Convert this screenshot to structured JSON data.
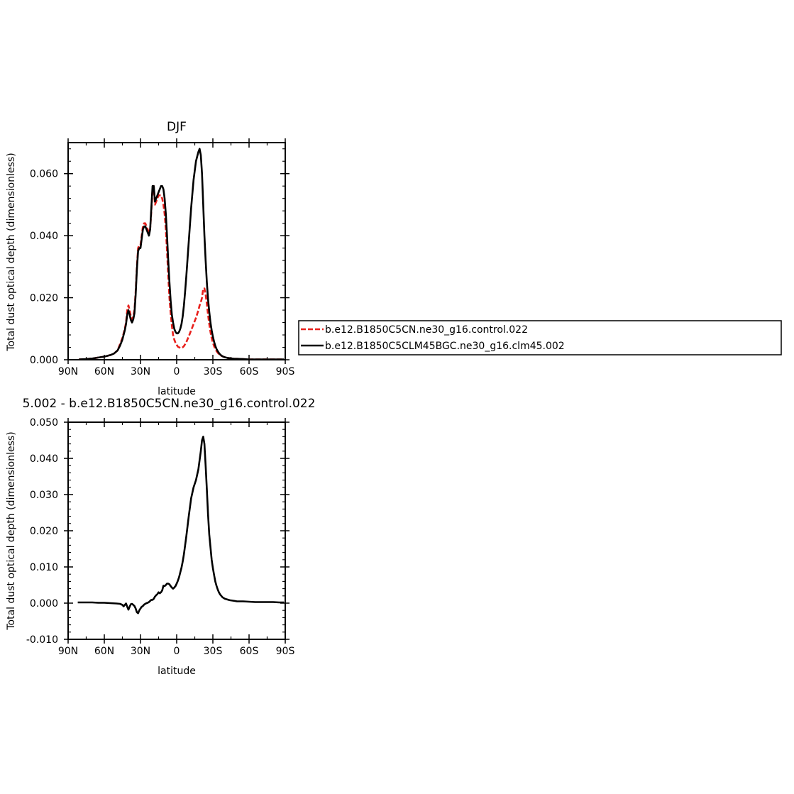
{
  "chart_data": [
    {
      "type": "line",
      "title": "DJF",
      "xlabel": "latitude",
      "ylabel": "Total dust optical depth (dimensionless)",
      "xlim": [
        90,
        -90
      ],
      "ylim": [
        0,
        0.07
      ],
      "x_ticks": [
        90,
        60,
        30,
        0,
        -30,
        -60,
        -90
      ],
      "x_tick_labels": [
        "90N",
        "60N",
        "30N",
        "0",
        "30S",
        "60S",
        "90S"
      ],
      "y_ticks": [
        0,
        0.02,
        0.04,
        0.06
      ],
      "y_tick_labels": [
        "0.000",
        "0.020",
        "0.040",
        "0.060"
      ],
      "grid": false,
      "legend_position": "right",
      "series": [
        {
          "name": "b.e12.B1850C5CN.ne30_g16.control.022",
          "color": "#e8201c",
          "dash": "dashed",
          "x": [
            81,
            75,
            70,
            65,
            60,
            55,
            52,
            49,
            47,
            45,
            43,
            42,
            41,
            40,
            39,
            38,
            37,
            36,
            35,
            34,
            33,
            32,
            31,
            30,
            29,
            28,
            27,
            26,
            25,
            24,
            23,
            22,
            21,
            20,
            19,
            18,
            17,
            16,
            15,
            14,
            13,
            12,
            11,
            10,
            9,
            8,
            7,
            6,
            5,
            4,
            3,
            2,
            1,
            0,
            -1,
            -2,
            -3,
            -4,
            -5,
            -6,
            -7,
            -8,
            -10,
            -12,
            -14,
            -16,
            -18,
            -19,
            -20,
            -21,
            -22,
            -23,
            -24,
            -25,
            -26,
            -27,
            -28,
            -29,
            -30,
            -31,
            -32,
            -33,
            -34,
            -35,
            -36,
            -38,
            -40,
            -42,
            -44,
            -46,
            -48,
            -50,
            -55,
            -60,
            -65,
            -70,
            -75,
            -80,
            -85,
            -89
          ],
          "y": [
            0.0001,
            0.0002,
            0.0004,
            0.0007,
            0.001,
            0.0015,
            0.002,
            0.003,
            0.005,
            0.007,
            0.01,
            0.012,
            0.016,
            0.0175,
            0.016,
            0.014,
            0.013,
            0.014,
            0.016,
            0.022,
            0.03,
            0.036,
            0.037,
            0.037,
            0.04,
            0.043,
            0.044,
            0.044,
            0.043,
            0.042,
            0.041,
            0.042,
            0.048,
            0.055,
            0.056,
            0.05,
            0.051,
            0.052,
            0.053,
            0.053,
            0.053,
            0.052,
            0.05,
            0.047,
            0.042,
            0.035,
            0.027,
            0.02,
            0.015,
            0.011,
            0.008,
            0.0065,
            0.0055,
            0.0048,
            0.0042,
            0.004,
            0.0038,
            0.0038,
            0.004,
            0.0044,
            0.005,
            0.0057,
            0.0075,
            0.0095,
            0.0115,
            0.0135,
            0.016,
            0.0175,
            0.0185,
            0.02,
            0.023,
            0.023,
            0.021,
            0.018,
            0.0145,
            0.0115,
            0.009,
            0.007,
            0.0055,
            0.0044,
            0.0035,
            0.0028,
            0.0023,
            0.0018,
            0.0015,
            0.0011,
            0.0008,
            0.0006,
            0.0005,
            0.0004,
            0.0003,
            0.0003,
            0.0002,
            0.0001,
            0.0001,
            0.0001,
            0.0001,
            0.0001,
            0.0001,
            0.0001
          ]
        },
        {
          "name": "b.e12.B1850C5CLM45BGC.ne30_g16.clm45.002",
          "color": "#000000",
          "dash": "solid",
          "x": [
            81,
            75,
            70,
            65,
            60,
            55,
            52,
            49,
            47,
            45,
            43,
            42,
            41,
            40,
            39,
            38,
            37,
            36,
            35,
            34,
            33,
            32,
            31,
            30,
            29,
            28,
            27,
            26,
            25,
            24,
            23,
            22,
            21,
            20,
            19,
            18,
            17,
            16,
            15,
            14,
            13,
            12,
            11,
            10,
            9,
            8,
            7,
            6,
            5,
            4,
            3,
            2,
            1,
            0,
            -1,
            -2,
            -3,
            -4,
            -5,
            -6,
            -7,
            -8,
            -10,
            -12,
            -14,
            -16,
            -18,
            -19,
            -20,
            -21,
            -22,
            -23,
            -24,
            -25,
            -26,
            -27,
            -28,
            -29,
            -30,
            -31,
            -32,
            -33,
            -34,
            -35,
            -36,
            -38,
            -40,
            -42,
            -44,
            -46,
            -48,
            -50,
            -55,
            -60,
            -65,
            -70,
            -75,
            -80,
            -85,
            -89
          ],
          "y": [
            0.0001,
            0.0002,
            0.0004,
            0.0007,
            0.001,
            0.0015,
            0.002,
            0.003,
            0.0045,
            0.0065,
            0.0095,
            0.0115,
            0.0145,
            0.016,
            0.0145,
            0.0128,
            0.012,
            0.013,
            0.015,
            0.021,
            0.029,
            0.035,
            0.036,
            0.036,
            0.039,
            0.042,
            0.043,
            0.043,
            0.042,
            0.041,
            0.04,
            0.042,
            0.049,
            0.056,
            0.056,
            0.051,
            0.052,
            0.053,
            0.054,
            0.055,
            0.056,
            0.056,
            0.055,
            0.052,
            0.047,
            0.04,
            0.032,
            0.025,
            0.019,
            0.0145,
            0.012,
            0.01,
            0.009,
            0.0085,
            0.0085,
            0.009,
            0.01,
            0.0115,
            0.014,
            0.0175,
            0.022,
            0.027,
            0.038,
            0.049,
            0.058,
            0.064,
            0.067,
            0.068,
            0.066,
            0.06,
            0.05,
            0.04,
            0.032,
            0.025,
            0.0195,
            0.0155,
            0.012,
            0.0095,
            0.0075,
            0.0058,
            0.0045,
            0.0035,
            0.0028,
            0.0022,
            0.0017,
            0.0011,
            0.0008,
            0.0006,
            0.0005,
            0.0004,
            0.0003,
            0.0003,
            0.0002,
            0.0001,
            0.0001,
            0.0001,
            0.0001,
            0.0001,
            0.0001,
            0.0001
          ]
        }
      ]
    },
    {
      "type": "line",
      "title": "5.002 - b.e12.B1850C5CN.ne30_g16.control.022",
      "xlabel": "latitude",
      "ylabel": "Total dust optical depth (dimensionless)",
      "xlim": [
        90,
        -90
      ],
      "ylim": [
        -0.01,
        0.05
      ],
      "x_ticks": [
        90,
        60,
        30,
        0,
        -30,
        -60,
        -90
      ],
      "x_tick_labels": [
        "90N",
        "60N",
        "30N",
        "0",
        "30S",
        "60S",
        "90S"
      ],
      "y_ticks": [
        -0.01,
        0,
        0.01,
        0.02,
        0.03,
        0.04,
        0.05
      ],
      "y_tick_labels": [
        "-0.010",
        "0.000",
        "0.010",
        "0.020",
        "0.030",
        "0.040",
        "0.050"
      ],
      "grid": false,
      "series": [
        {
          "color": "#000000",
          "dash": "solid",
          "x": [
            82,
            75,
            70,
            65,
            60,
            55,
            50,
            47,
            45,
            44,
            43,
            42,
            41,
            40,
            39,
            38,
            37,
            36,
            35,
            34,
            33,
            32,
            31,
            30,
            29,
            28,
            27,
            26,
            25,
            24,
            23,
            22,
            21,
            20,
            19,
            18,
            17,
            16,
            15,
            14,
            13,
            12,
            11,
            10,
            9,
            8,
            7,
            6,
            5,
            4,
            3,
            2,
            1,
            0,
            -1,
            -2,
            -3,
            -4,
            -5,
            -6,
            -7,
            -8,
            -10,
            -12,
            -14,
            -16,
            -18,
            -20,
            -21,
            -22,
            -23,
            -24,
            -25,
            -26,
            -27,
            -28,
            -29,
            -30,
            -31,
            -32,
            -33,
            -34,
            -35,
            -36,
            -38,
            -40,
            -42,
            -44,
            -46,
            -48,
            -50,
            -55,
            -60,
            -65,
            -70,
            -75,
            -80,
            -85,
            -89
          ],
          "y": [
            0.0002,
            0.0002,
            0.0002,
            0.0001,
            0.0001,
            0.0,
            -0.0001,
            -0.0002,
            -0.0005,
            -0.0009,
            -0.0005,
            -0.0001,
            -0.001,
            -0.0018,
            -0.001,
            -0.0003,
            -0.0002,
            -0.0005,
            -0.0008,
            -0.0015,
            -0.0025,
            -0.0028,
            -0.002,
            -0.0015,
            -0.001,
            -0.0008,
            -0.0004,
            -0.0002,
            0.0,
            0.0001,
            0.0003,
            0.0006,
            0.0009,
            0.0009,
            0.0012,
            0.0018,
            0.0022,
            0.0025,
            0.003,
            0.0027,
            0.003,
            0.0035,
            0.0048,
            0.0047,
            0.005,
            0.0054,
            0.0054,
            0.0052,
            0.0047,
            0.0043,
            0.004,
            0.0043,
            0.0047,
            0.0054,
            0.0062,
            0.0072,
            0.0085,
            0.0098,
            0.0115,
            0.0135,
            0.016,
            0.0185,
            0.024,
            0.029,
            0.032,
            0.034,
            0.037,
            0.042,
            0.045,
            0.046,
            0.044,
            0.038,
            0.0315,
            0.0245,
            0.019,
            0.0155,
            0.012,
            0.0097,
            0.0078,
            0.006,
            0.0048,
            0.0038,
            0.003,
            0.0024,
            0.0016,
            0.0012,
            0.001,
            0.0008,
            0.0007,
            0.0006,
            0.0005,
            0.0005,
            0.0004,
            0.0003,
            0.0003,
            0.0003,
            0.0003,
            0.0002,
            0.0002
          ]
        }
      ]
    }
  ]
}
